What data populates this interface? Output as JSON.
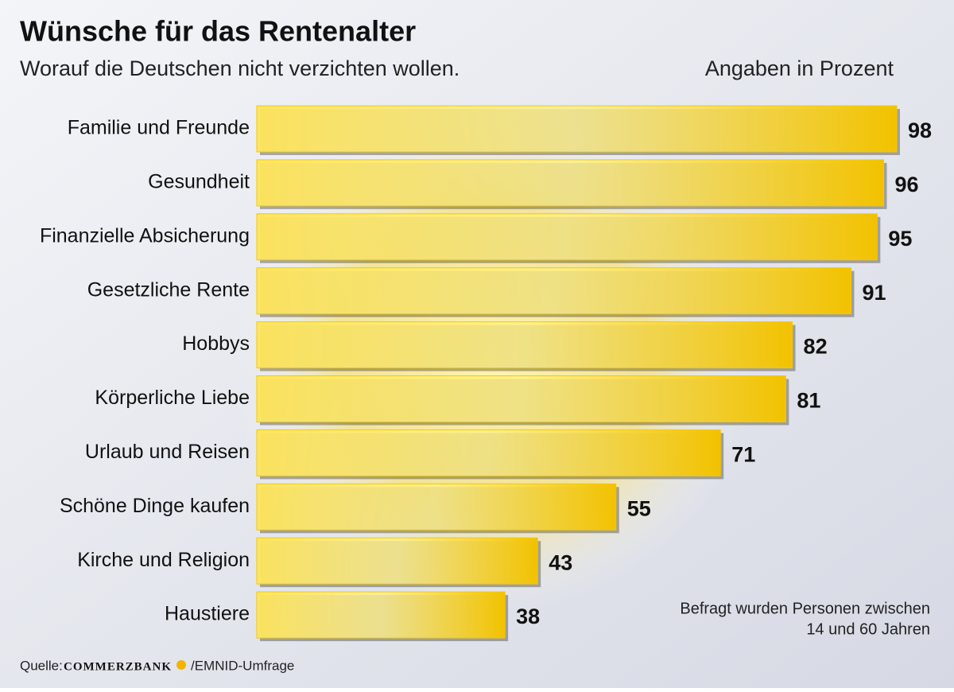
{
  "chart_data": {
    "type": "hbar",
    "title": "Wünsche für das Rentenalter",
    "subtitle": "Worauf die Deutschen nicht verzichten wollen.",
    "unit_note": "Angaben in Prozent",
    "categories": [
      "Familie und Freunde",
      "Gesundheit",
      "Finanzielle Absicherung",
      "Gesetzliche Rente",
      "Hobbys",
      "Körperliche Liebe",
      "Urlaub und Reisen",
      "Schöne Dinge kaufen",
      "Kirche und Religion",
      "Haustiere"
    ],
    "values": [
      98,
      96,
      95,
      91,
      82,
      81,
      71,
      55,
      43,
      38
    ],
    "color": "#f5c800",
    "note": [
      "Befragt wurden Personen zwischen",
      "14 und 60 Jahren"
    ],
    "source": {
      "prefix": "Quelle:",
      "brand": "COMMERZBANK",
      "suffix": "/EMNID-Umfrage"
    }
  }
}
